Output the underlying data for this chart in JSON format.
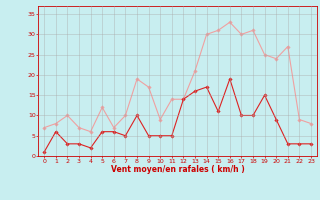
{
  "x": [
    0,
    1,
    2,
    3,
    4,
    5,
    6,
    7,
    8,
    9,
    10,
    11,
    12,
    13,
    14,
    15,
    16,
    17,
    18,
    19,
    20,
    21,
    22,
    23
  ],
  "wind_avg": [
    1,
    6,
    3,
    3,
    2,
    6,
    6,
    5,
    10,
    5,
    5,
    5,
    14,
    16,
    17,
    11,
    19,
    10,
    10,
    15,
    9,
    3,
    3,
    3
  ],
  "wind_gust": [
    7,
    8,
    10,
    7,
    6,
    12,
    7,
    10,
    19,
    17,
    9,
    14,
    14,
    21,
    30,
    31,
    33,
    30,
    31,
    25,
    24,
    27,
    9,
    8
  ],
  "avg_color": "#dd2222",
  "gust_color": "#f0a0a0",
  "bg_color": "#c8eef0",
  "grid_color": "#aaaaaa",
  "xlabel": "Vent moyen/en rafales ( km/h )",
  "ylim": [
    0,
    37
  ],
  "xlim": [
    -0.5,
    23.5
  ],
  "yticks": [
    0,
    5,
    10,
    15,
    20,
    25,
    30,
    35
  ],
  "xticks": [
    0,
    1,
    2,
    3,
    4,
    5,
    6,
    7,
    8,
    9,
    10,
    11,
    12,
    13,
    14,
    15,
    16,
    17,
    18,
    19,
    20,
    21,
    22,
    23
  ],
  "tick_color": "#cc0000",
  "label_color": "#cc0000",
  "spine_color": "#cc0000"
}
